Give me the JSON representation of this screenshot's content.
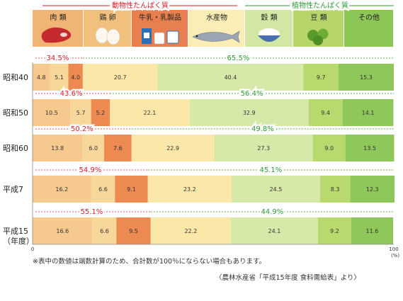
{
  "chart_data": {
    "type": "bar",
    "stacked": true,
    "percent": true,
    "groups": [
      {
        "label": "動物性たんぱく質",
        "color": "#d6202a",
        "categories": [
          "肉 類",
          "鶏 卵",
          "牛乳・乳製品"
        ]
      },
      {
        "label": "植物性たんぱく質",
        "color": "#2e9a34",
        "categories": [
          "水産物",
          "穀 類",
          "豆 類",
          "その他"
        ]
      }
    ],
    "categories": [
      {
        "name": "肉 類",
        "header_color": "#f0b474",
        "color": "#f6c98f",
        "icon": "meat-icon"
      },
      {
        "name": "鶏 卵",
        "header_color": "#f0c07c",
        "color": "#f8d79a",
        "icon": "egg-icon"
      },
      {
        "name": "牛乳・乳製品",
        "header_color": "#e77f4e",
        "color": "#ec8a52",
        "icon": "milk-icon"
      },
      {
        "name": "水産物",
        "header_color": "#faeeb6",
        "color": "#fbe8a8",
        "icon": "fish-icon"
      },
      {
        "name": "穀 類",
        "header_color": "#d3e7a4",
        "color": "#d6e9a8",
        "icon": "rice-icon"
      },
      {
        "name": "豆 類",
        "header_color": "#b6d66c",
        "color": "#b8d96e",
        "icon": "beans-icon"
      },
      {
        "name": "その他",
        "header_color": "#8cc657",
        "color": "#8ec85a",
        "icon": ""
      }
    ],
    "rows": [
      {
        "label": "昭和40",
        "sublabel": "",
        "values": [
          4.8,
          5.1,
          4.0,
          20.7,
          40.4,
          9.7,
          15.3
        ],
        "animal_pct": "34.5%",
        "plant_pct": "65.5%"
      },
      {
        "label": "昭和50",
        "sublabel": "",
        "values": [
          10.5,
          5.7,
          5.2,
          22.1,
          32.9,
          9.4,
          14.1
        ],
        "animal_pct": "43.6%",
        "plant_pct": "56.4%"
      },
      {
        "label": "昭和60",
        "sublabel": "",
        "values": [
          13.8,
          6.0,
          7.6,
          22.9,
          27.3,
          9.0,
          13.5
        ],
        "animal_pct": "50.2%",
        "plant_pct": "49.8%"
      },
      {
        "label": "平成7",
        "sublabel": "",
        "values": [
          16.2,
          6.6,
          9.1,
          23.2,
          24.5,
          8.3,
          12.3
        ],
        "animal_pct": "54.9%",
        "plant_pct": "45.1%"
      },
      {
        "label": "平成15",
        "sublabel": "（年度）",
        "values": [
          16.6,
          6.6,
          9.5,
          22.2,
          24.1,
          9.2,
          11.6
        ],
        "animal_pct": "55.1%",
        "plant_pct": "44.9%"
      }
    ],
    "x_ticks": [
      "0",
      "100"
    ],
    "x_unit": "(%)",
    "xlim": [
      0,
      100
    ]
  },
  "footnote": "※表中の数値は端数計算のため、合計数が100％にならない場合もあります。",
  "source": "〈農林水産省「平成15年度 食料需給表」より〉"
}
